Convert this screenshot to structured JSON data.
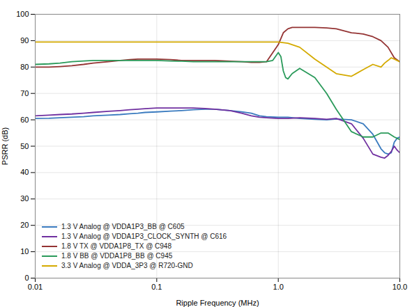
{
  "chart_data": {
    "type": "line",
    "xlabel": "Ripple Frequency (MHz)",
    "ylabel": "PSRR (dB)",
    "log": "x",
    "grid": true,
    "legend": "lower left",
    "xlim": [
      0.01,
      10
    ],
    "xticks": [
      0.01,
      0.1,
      {
        "value": 1,
        "label": "1.0"
      },
      {
        "value": 10,
        "label": "10.0"
      }
    ],
    "ylim": [
      0,
      100
    ],
    "yticks": [
      0,
      10,
      20,
      30,
      40,
      50,
      60,
      70,
      80,
      90,
      100
    ],
    "series": [
      {
        "name": "1.3 V Analog @ VDDA1P3_BB @ C605",
        "color": "#3a7bbf",
        "x": [
          0.01,
          0.013,
          0.016,
          0.02,
          0.025,
          0.03,
          0.04,
          0.05,
          0.06,
          0.07,
          0.08,
          0.1,
          0.13,
          0.16,
          0.2,
          0.25,
          0.3,
          0.4,
          0.5,
          0.6,
          0.7,
          0.8,
          1.0,
          1.2,
          1.5,
          2.0,
          2.5,
          3.0,
          4.0,
          5.0,
          6.0,
          7.0,
          7.5,
          8.0,
          8.5,
          9.0,
          9.5,
          10.0
        ],
        "values": [
          60.5,
          60.6,
          60.8,
          61.0,
          61.2,
          61.5,
          61.8,
          62.0,
          62.3,
          62.5,
          62.8,
          63.0,
          63.3,
          63.5,
          63.8,
          64.0,
          64.0,
          63.5,
          63.0,
          62.5,
          61.5,
          61.2,
          61.0,
          61.0,
          60.5,
          60.2,
          60.0,
          60.3,
          60.0,
          58.5,
          54.5,
          49.0,
          47.5,
          47.0,
          47.5,
          51.5,
          53.0,
          53.5
        ]
      },
      {
        "name": "1.3 V Analog @ VDDA1P3_CLOCK_SYNTH @ C616",
        "color": "#7030a0",
        "x": [
          0.01,
          0.013,
          0.016,
          0.02,
          0.025,
          0.03,
          0.04,
          0.05,
          0.06,
          0.07,
          0.08,
          0.1,
          0.13,
          0.16,
          0.2,
          0.25,
          0.3,
          0.4,
          0.5,
          0.6,
          0.7,
          0.8,
          1.0,
          1.2,
          1.5,
          2.0,
          2.5,
          3.0,
          4.0,
          5.0,
          6.0,
          7.0,
          7.5,
          8.0,
          8.5,
          9.0,
          9.5,
          10.0
        ],
        "values": [
          61.5,
          61.8,
          62.0,
          62.2,
          62.5,
          62.8,
          63.2,
          63.5,
          63.8,
          64.0,
          64.2,
          64.5,
          64.5,
          64.5,
          64.5,
          64.3,
          64.0,
          63.5,
          62.5,
          61.5,
          61.0,
          60.8,
          60.5,
          60.5,
          60.8,
          60.5,
          60.2,
          60.5,
          58.5,
          53.0,
          47.0,
          45.8,
          45.5,
          46.5,
          48.0,
          50.0,
          48.5,
          47.5
        ]
      },
      {
        "name": "1.8 V TX @ VDDA1P8_TX @ C948",
        "color": "#943333",
        "x": [
          0.01,
          0.013,
          0.016,
          0.02,
          0.025,
          0.03,
          0.04,
          0.05,
          0.06,
          0.07,
          0.08,
          0.1,
          0.13,
          0.16,
          0.2,
          0.25,
          0.3,
          0.4,
          0.5,
          0.6,
          0.7,
          0.8,
          1.0,
          1.1,
          1.2,
          1.3,
          1.5,
          1.8,
          2.0,
          2.5,
          3.0,
          4.0,
          5.0,
          6.0,
          7.0,
          8.0,
          9.0,
          10.0
        ],
        "values": [
          80.0,
          80.0,
          80.2,
          80.5,
          81.0,
          81.5,
          82.0,
          82.5,
          82.8,
          83.0,
          83.0,
          83.0,
          82.8,
          82.5,
          82.5,
          82.5,
          82.5,
          82.2,
          82.0,
          81.8,
          81.8,
          82.0,
          88.5,
          93.0,
          94.5,
          95.0,
          95.0,
          95.0,
          95.0,
          94.8,
          94.5,
          93.0,
          92.5,
          91.5,
          90.0,
          87.5,
          83.5,
          82.0
        ]
      },
      {
        "name": "1.8 V BB @ VDDA1P8_BB @ C945",
        "color": "#2a9a5a",
        "x": [
          0.01,
          0.013,
          0.016,
          0.02,
          0.025,
          0.03,
          0.04,
          0.05,
          0.06,
          0.07,
          0.08,
          0.1,
          0.13,
          0.16,
          0.2,
          0.25,
          0.3,
          0.4,
          0.5,
          0.6,
          0.7,
          0.8,
          0.9,
          1.0,
          1.05,
          1.1,
          1.15,
          1.2,
          1.3,
          1.5,
          2.0,
          2.5,
          3.0,
          4.0,
          5.0,
          6.0,
          7.0,
          8.0,
          9.0,
          10.0
        ],
        "values": [
          81.0,
          81.2,
          81.5,
          82.0,
          82.3,
          82.5,
          82.5,
          82.5,
          82.5,
          82.5,
          82.5,
          82.5,
          82.3,
          82.2,
          82.0,
          82.0,
          82.0,
          82.0,
          82.0,
          82.0,
          82.0,
          82.0,
          82.5,
          85.5,
          84.0,
          78.5,
          76.0,
          75.5,
          77.5,
          79.5,
          76.0,
          70.0,
          64.0,
          55.5,
          53.5,
          53.5,
          55.0,
          55.0,
          53.5,
          52.5
        ]
      },
      {
        "name": "3.3 V Analog @ VDDA_3P3 @ R720-GND",
        "color": "#d4aa00",
        "x": [
          0.01,
          0.05,
          0.1,
          0.5,
          1.0,
          1.2,
          1.5,
          2.0,
          3.0,
          4.0,
          5.0,
          6.0,
          7.0,
          7.5,
          8.0,
          8.5,
          9.0,
          9.5,
          10.0
        ],
        "values": [
          89.5,
          89.5,
          89.5,
          89.5,
          89.5,
          89.0,
          87.5,
          83.0,
          77.5,
          76.5,
          79.0,
          81.0,
          80.0,
          81.5,
          82.5,
          83.5,
          83.0,
          82.5,
          82.0
        ]
      }
    ]
  }
}
